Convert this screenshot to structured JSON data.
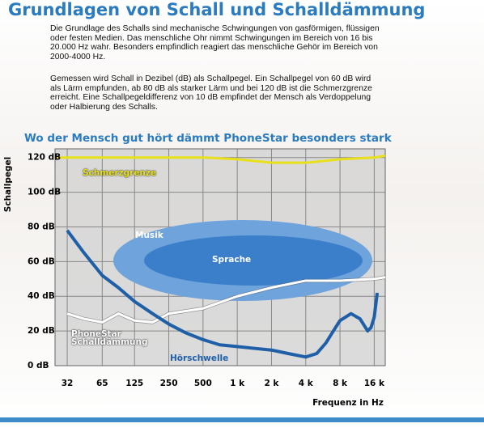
{
  "header": {
    "title": "Grundlagen von Schall und Schalldämmung"
  },
  "paragraphs": [
    "Die Grundlage des Schalls sind mechanische Schwingungen von gasförmigen, flüssigen oder festen Medien. Das menschliche Ohr nimmt Schwingungen im Bereich von 16 bis 20.000 Hz wahr. Besonders empfindlich reagiert das menschliche Gehör im Bereich von 2000-4000 Hz.",
    "Gemessen wird Schall in Dezibel (dB) als Schallpegel.  Ein Schallpegel von 60 dB wird als Lärm empfunden, ab 80 dB als starker Lärm und bei 120 dB ist die Schmerzgrenze erreicht. Eine Schallpegeldifferenz von 10 dB empfindet der Mensch als Verdoppelung oder Halbierung des Schalls."
  ],
  "chart_data": {
    "type": "line",
    "title": "Wo der Mensch gut hört dämmt PhoneStar besonders stark",
    "x_label": "Frequenz in Hz",
    "y_label": "Schallpegel",
    "xscale": "log",
    "xlim": [
      25,
      20000
    ],
    "xticks": [
      32,
      65,
      125,
      250,
      500,
      {
        "value": 1000,
        "label": "1 k"
      },
      {
        "value": 2000,
        "label": "2 k"
      },
      {
        "value": 4000,
        "label": "4 k"
      },
      {
        "value": 8000,
        "label": "8 k"
      },
      {
        "value": 16000,
        "label": "16 k"
      }
    ],
    "ylim": [
      0,
      125
    ],
    "yticks": [
      {
        "value": 0,
        "label": "0 dB"
      },
      {
        "value": 20,
        "label": "20 dB"
      },
      {
        "value": 40,
        "label": "40 dB"
      },
      {
        "value": 60,
        "label": "60 dB"
      },
      {
        "value": 80,
        "label": "80 dB"
      },
      {
        "value": 100,
        "label": "100 dB"
      },
      {
        "value": 120,
        "label": "120 dB"
      }
    ],
    "grid": true,
    "annotations": [
      "Musik",
      "Sprache"
    ],
    "series": [
      {
        "name": "Schmerzgrenze",
        "color": "#e8e01a",
        "x": [
          25,
          32,
          500,
          1000,
          2000,
          4000,
          8000,
          16000,
          20000
        ],
        "values": [
          120,
          120,
          120,
          119,
          117,
          117,
          119,
          120,
          121
        ]
      },
      {
        "name": "PhoneStar Schalldämmung",
        "color": "#ffffff",
        "x": [
          32,
          45,
          65,
          90,
          125,
          180,
          250,
          500,
          1000,
          2000,
          4000,
          8000,
          16000,
          20000
        ],
        "values": [
          30,
          27,
          25,
          30,
          26,
          25,
          30,
          33,
          40,
          45,
          49,
          49,
          50,
          51
        ]
      },
      {
        "name": "Hörschwelle",
        "color": "#1f5fa8",
        "x": [
          32,
          45,
          65,
          90,
          125,
          180,
          250,
          350,
          500,
          700,
          1000,
          1400,
          2000,
          2800,
          4000,
          5000,
          6000,
          7000,
          8000,
          10000,
          12000,
          14000,
          15000,
          16000,
          17000
        ],
        "values": [
          78,
          65,
          52,
          45,
          37,
          30,
          24,
          19,
          15,
          12,
          11,
          10,
          9,
          7,
          5,
          7,
          13,
          20,
          26,
          30,
          27,
          20,
          22,
          28,
          42
        ]
      }
    ]
  }
}
